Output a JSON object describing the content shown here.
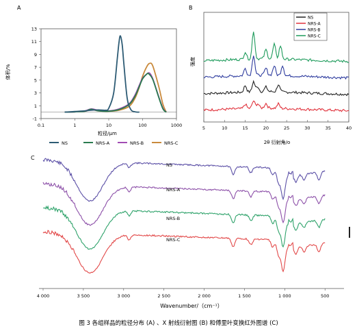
{
  "caption": "图 3  各组样品的粒径分布 (A) 、X 射线衍射图 (B) 和傅里叶变换红外图谱 (C)",
  "colors": {
    "NS": "#2d5b74",
    "NRS-A": "#2a7b4f",
    "NRS-B": "#a14bb3",
    "NRS-C": "#c98a3c",
    "B_NS": "#222222",
    "B_NRS-A": "#e0303a",
    "B_NRS-B": "#2d3b9e",
    "B_NRS-C": "#1c9a5a",
    "C_NS": "#5b4fa6",
    "C_NRS-A": "#8c4fa8",
    "C_NRS-B": "#2ea26a",
    "C_NRS-C": "#e24848"
  },
  "chart_data": [
    {
      "panel": "A",
      "type": "line",
      "xscale": "log",
      "xlim": [
        0.1,
        1000
      ],
      "ylim": [
        -1,
        13
      ],
      "xticks": [
        "0.1",
        "1",
        "10",
        "100",
        "1000"
      ],
      "yticks": [
        "-1",
        "1",
        "3",
        "5",
        "7",
        "9",
        "11",
        "13"
      ],
      "xlabel": "粒径/μm",
      "ylabel": "体积/%",
      "legend": [
        "NS",
        "NRS-A",
        "NRS-B",
        "NRS-C"
      ],
      "series": [
        {
          "name": "NS",
          "x": [
            0.5,
            1,
            2,
            3,
            5,
            8,
            10,
            14,
            18,
            20,
            22,
            25,
            28,
            35,
            45,
            60,
            80
          ],
          "y": [
            0.0,
            0.1,
            0.2,
            0.3,
            0.35,
            0.3,
            0.6,
            3.0,
            8.5,
            10.8,
            11.9,
            10.5,
            7.5,
            2.2,
            0.4,
            0.05,
            0.0
          ]
        },
        {
          "name": "NRS-A",
          "x": [
            0.5,
            1,
            2,
            3,
            5,
            10,
            20,
            40,
            60,
            80,
            100,
            130,
            150,
            200,
            300,
            400,
            500
          ],
          "y": [
            0.0,
            0.05,
            0.15,
            0.45,
            0.2,
            0.15,
            0.4,
            1.2,
            2.5,
            4.0,
            5.2,
            5.9,
            6.0,
            5.1,
            2.3,
            0.5,
            0.0
          ]
        },
        {
          "name": "NRS-B",
          "x": [
            0.5,
            1,
            2,
            3,
            5,
            10,
            20,
            40,
            60,
            80,
            100,
            130,
            160,
            200,
            300,
            400,
            500
          ],
          "y": [
            0.0,
            0.05,
            0.2,
            0.5,
            0.3,
            0.2,
            0.5,
            1.3,
            2.7,
            4.2,
            5.3,
            5.9,
            6.1,
            5.2,
            2.4,
            0.6,
            0.0
          ]
        },
        {
          "name": "NRS-C",
          "x": [
            0.5,
            1,
            2,
            3,
            5,
            10,
            20,
            40,
            60,
            80,
            100,
            130,
            160,
            200,
            300,
            400,
            500
          ],
          "y": [
            0.0,
            0.05,
            0.15,
            0.4,
            0.2,
            0.15,
            0.3,
            0.9,
            2.2,
            3.9,
            5.6,
            7.0,
            7.6,
            7.2,
            4.0,
            1.2,
            0.0
          ]
        }
      ]
    },
    {
      "panel": "B",
      "type": "line",
      "xlim": [
        5,
        40
      ],
      "xticks": [
        "5",
        "10",
        "15",
        "20",
        "25",
        "30",
        "35",
        "40"
      ],
      "xlabel": "2θ 衍射角/o",
      "ylabel": "强度",
      "legend": [
        "NS",
        "NRS-A",
        "NRS-B",
        "NRS-C"
      ],
      "series": [
        {
          "name": "NS",
          "offset": 2,
          "peaks": [
            [
              15,
              0.9
            ],
            [
              17,
              1.4
            ],
            [
              18,
              0.7
            ],
            [
              20,
              0.6
            ],
            [
              23,
              1.0
            ]
          ]
        },
        {
          "name": "NRS-A",
          "offset": 0,
          "peaks": [
            [
              15,
              0.6
            ],
            [
              17,
              1.0
            ],
            [
              18,
              0.6
            ],
            [
              20,
              0.6
            ],
            [
              23,
              0.6
            ]
          ]
        },
        {
          "name": "NRS-B",
          "offset": 4,
          "peaks": [
            [
              15,
              1.0
            ],
            [
              17,
              2.8
            ],
            [
              20,
              0.9
            ],
            [
              22,
              1.3
            ],
            [
              24,
              1.4
            ]
          ]
        },
        {
          "name": "NRS-C",
          "offset": 6,
          "peaks": [
            [
              15,
              1.0
            ],
            [
              17,
              3.8
            ],
            [
              20,
              1.2
            ],
            [
              22,
              2.0
            ],
            [
              23.5,
              1.8
            ]
          ]
        }
      ]
    },
    {
      "panel": "C",
      "type": "line",
      "xlim": [
        4000,
        400
      ],
      "xticks": [
        "4 000",
        "3 500",
        "3 000",
        "2 500",
        "2 000",
        "1 500",
        "1 000",
        "500"
      ],
      "xlabel": "Wavenumber/（cm⁻¹）",
      "series": [
        {
          "name": "NS",
          "label": "NS",
          "offset": 0
        },
        {
          "name": "NRS-A",
          "label": "NRS-A",
          "offset": 35
        },
        {
          "name": "NRS-B",
          "label": "NRS-B",
          "offset": 70
        },
        {
          "name": "NRS-C",
          "label": "NRS-C",
          "offset": 105
        }
      ],
      "features": [
        [
          3420,
          18
        ],
        [
          2930,
          5
        ],
        [
          1640,
          9
        ],
        [
          1420,
          6
        ],
        [
          1150,
          8
        ],
        [
          1080,
          10
        ],
        [
          1020,
          16
        ],
        [
          930,
          6
        ],
        [
          860,
          7
        ],
        [
          760,
          6
        ],
        [
          575,
          8
        ]
      ]
    }
  ]
}
